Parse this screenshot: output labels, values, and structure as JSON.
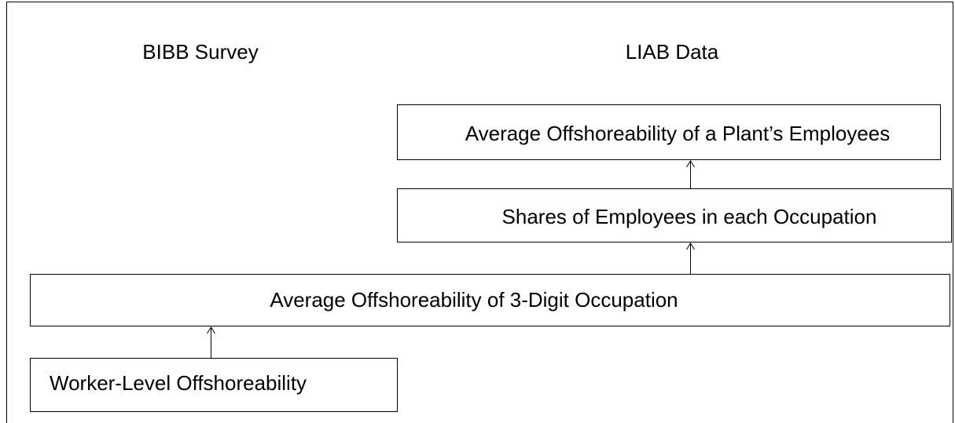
{
  "columns": {
    "left": "BIBB Survey",
    "right": "LIAB Data"
  },
  "nodes": [
    {
      "label": "Average Offshoreability of a Plant’s Employees"
    },
    {
      "label": "Shares of Employees in each Occupation"
    },
    {
      "label": "Average Offshoreability of 3-Digit Occupation"
    },
    {
      "label": "Worker-Level Offshoreability"
    }
  ]
}
